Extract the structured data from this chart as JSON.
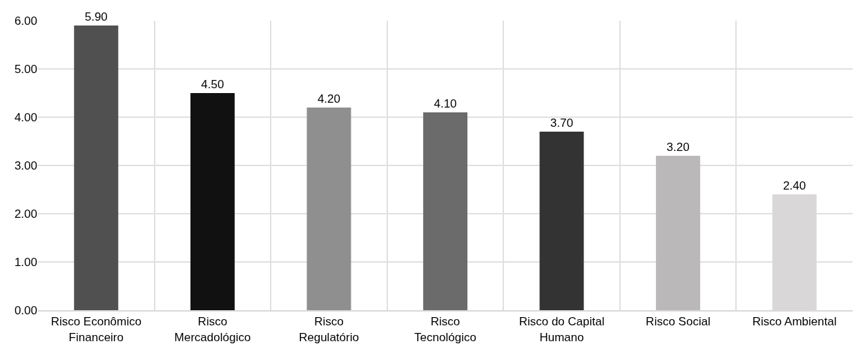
{
  "chart_data": {
    "type": "bar",
    "categories": [
      "Risco Econômico Financeiro",
      "Risco Mercadológico",
      "Risco Regulatório",
      "Risco Tecnológico",
      "Risco do Capital Humano",
      "Risco Social",
      "Risco Ambiental"
    ],
    "values": [
      5.9,
      4.5,
      4.2,
      4.1,
      3.7,
      3.2,
      2.4
    ],
    "colors": [
      "#505050",
      "#111111",
      "#8f8f8f",
      "#6b6b6b",
      "#333333",
      "#bab8b8",
      "#d9d7d7"
    ],
    "value_labels": [
      "5.90",
      "4.50",
      "4.20",
      "4.10",
      "3.70",
      "3.20",
      "2.40"
    ],
    "ylim": [
      0,
      6
    ],
    "yticks": [
      {
        "value": 0,
        "label": "0.00"
      },
      {
        "value": 1,
        "label": "1.00"
      },
      {
        "value": 2,
        "label": "2.00"
      },
      {
        "value": 3,
        "label": "3.00"
      },
      {
        "value": 4,
        "label": "4.00"
      },
      {
        "value": 5,
        "label": "5.00"
      },
      {
        "value": 6,
        "label": "6.00"
      }
    ],
    "grid": true
  }
}
